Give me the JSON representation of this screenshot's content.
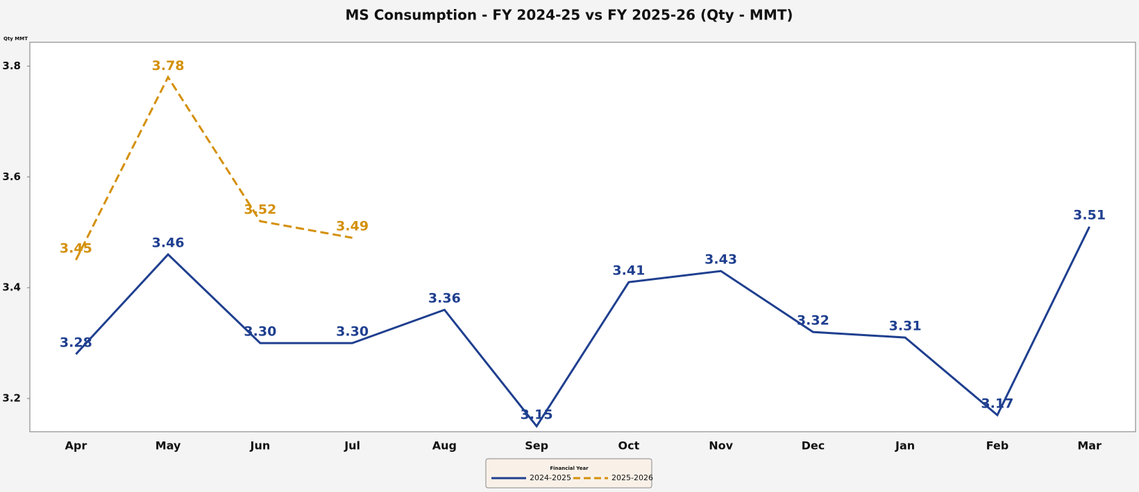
{
  "chart_data": {
    "type": "line",
    "title": "MS Consumption - FY 2024-25 vs FY 2025-26 (Qty - MMT)",
    "y_label": "Qty MMT",
    "categories": [
      "Apr",
      "May",
      "Jun",
      "Jul",
      "Aug",
      "Sep",
      "Oct",
      "Nov",
      "Dec",
      "Jan",
      "Feb",
      "Mar"
    ],
    "series": [
      {
        "name": "2024-2025",
        "color": "#1f3f8f",
        "style": "solid",
        "values": [
          3.28,
          3.46,
          3.3,
          3.3,
          3.36,
          3.15,
          3.41,
          3.43,
          3.32,
          3.31,
          3.17,
          3.51
        ],
        "value_labels": [
          "3.28",
          "3.46",
          "3.30",
          "3.30",
          "3.36",
          "3.15",
          "3.41",
          "3.43",
          "3.32",
          "3.31",
          "3.17",
          "3.51"
        ]
      },
      {
        "name": "2025-2026",
        "color": "#d4900a",
        "style": "dashed",
        "values": [
          3.45,
          3.78,
          3.52,
          3.49,
          null,
          null,
          null,
          null,
          null,
          null,
          null,
          null
        ],
        "value_labels": [
          "3.45",
          "3.78",
          "3.52",
          "3.49",
          null,
          null,
          null,
          null,
          null,
          null,
          null,
          null
        ]
      }
    ],
    "ylim": [
      3.14,
      3.843
    ],
    "yticks": [
      3.2,
      3.4,
      3.6,
      3.8
    ],
    "grid": false,
    "legend_title": "Financial Year",
    "legend_position": "bottom"
  }
}
